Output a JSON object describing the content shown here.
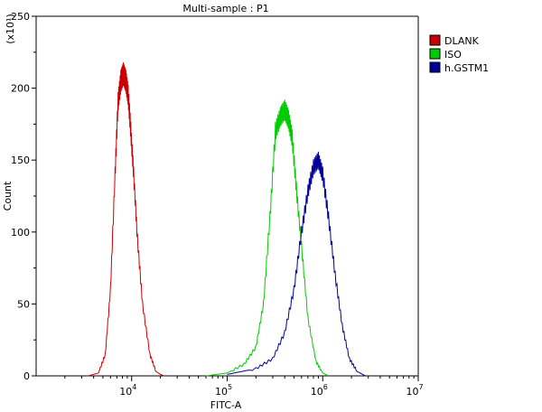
{
  "chart_data": {
    "type": "line",
    "title": "Multi-sample : P1",
    "xlabel": "FITC-A",
    "ylabel": "Count",
    "y_multiplier_label": "(x10¹)",
    "x_scale": "log",
    "xlim": [
      1000,
      10000000
    ],
    "ylim": [
      0,
      250
    ],
    "x_ticks": [
      {
        "value": 10000,
        "base": "10",
        "exp": "4"
      },
      {
        "value": 100000,
        "base": "10",
        "exp": "5"
      },
      {
        "value": 1000000,
        "base": "10",
        "exp": "6"
      },
      {
        "value": 10000000,
        "base": "10",
        "exp": "7"
      }
    ],
    "y_ticks": [
      0,
      50,
      100,
      150,
      200,
      250
    ],
    "grid": false,
    "legend_position": "top-right",
    "series": [
      {
        "name": "DLANK",
        "color": "#cc0000",
        "x": [
          3500,
          4500,
          5300,
          6000,
          6700,
          7200,
          7700,
          8200,
          8700,
          9200,
          9800,
          10500,
          11500,
          13000,
          15500,
          18000,
          20000,
          22000
        ],
        "y": [
          0,
          2,
          15,
          60,
          140,
          190,
          205,
          210,
          205,
          195,
          170,
          140,
          95,
          50,
          15,
          3,
          1,
          0
        ]
      },
      {
        "name": "ISO",
        "color": "#00cc00",
        "x": [
          60000,
          100000,
          150000,
          200000,
          240000,
          280000,
          320000,
          360000,
          400000,
          440000,
          480000,
          530000,
          600000,
          700000,
          850000,
          1000000,
          1150000
        ],
        "y": [
          0,
          2,
          8,
          20,
          50,
          110,
          170,
          180,
          185,
          178,
          165,
          130,
          90,
          40,
          10,
          2,
          0
        ]
      },
      {
        "name": "h.GSTM1",
        "color": "#000099",
        "x": [
          100000,
          200000,
          300000,
          400000,
          500000,
          600000,
          700000,
          800000,
          900000,
          1000000,
          1150000,
          1350000,
          1600000,
          1900000,
          2300000,
          2800000
        ],
        "y": [
          1,
          5,
          12,
          30,
          60,
          100,
          128,
          145,
          150,
          140,
          110,
          70,
          35,
          12,
          3,
          0
        ]
      }
    ]
  }
}
